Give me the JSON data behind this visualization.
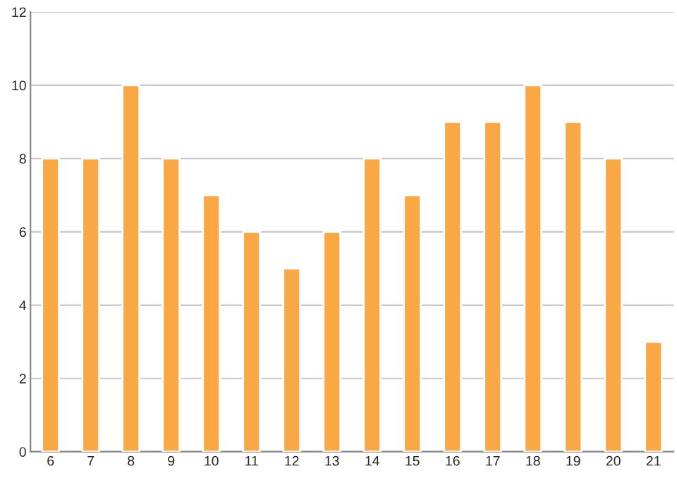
{
  "chart_data": {
    "type": "bar",
    "categories": [
      "6",
      "7",
      "8",
      "9",
      "10",
      "11",
      "12",
      "13",
      "14",
      "15",
      "16",
      "17",
      "18",
      "19",
      "20",
      "21"
    ],
    "values": [
      8,
      8,
      10,
      8,
      7,
      6,
      5,
      6,
      8,
      7,
      9,
      9,
      10,
      9,
      8,
      3
    ],
    "color": "#f9a845",
    "ylim": [
      0,
      12
    ],
    "yticks": [
      0,
      2,
      4,
      6,
      8,
      10,
      12
    ],
    "grid": "y"
  }
}
